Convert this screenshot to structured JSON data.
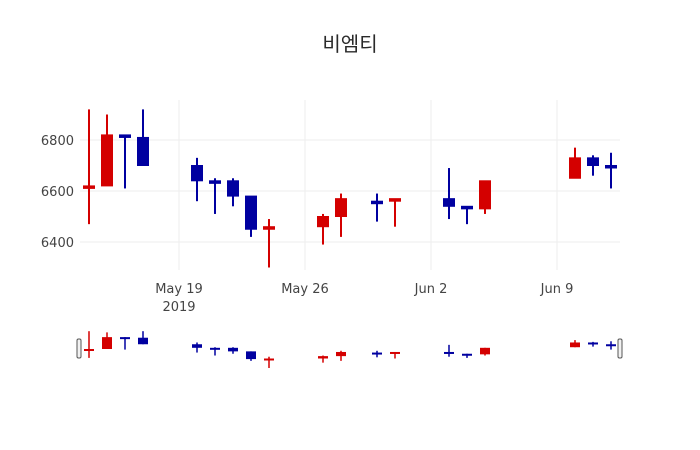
{
  "title": "비엠티",
  "colors": {
    "increasing": "#d40000",
    "decreasing": "#0000a0",
    "grid": "#eeeeee"
  },
  "chart_data": {
    "type": "candlestick",
    "title": "비엠티",
    "xlabel": "",
    "ylabel": "",
    "yticks": [
      6400,
      6600,
      6800
    ],
    "ylim": [
      6270,
      6960
    ],
    "xticks": [
      {
        "date": "2019-05-19",
        "label": "May 19",
        "sublabel": "2019"
      },
      {
        "date": "2019-05-26",
        "label": "May 26"
      },
      {
        "date": "2019-06-02",
        "label": "Jun 2"
      },
      {
        "date": "2019-06-09",
        "label": "Jun 9"
      }
    ],
    "grid": true,
    "rangeslider": true,
    "series": [
      {
        "date": "2019-05-14",
        "open": 6615,
        "high": 6920,
        "low": 6470,
        "close": 6620
      },
      {
        "date": "2019-05-15",
        "open": 6620,
        "high": 6900,
        "low": 6620,
        "close": 6820
      },
      {
        "date": "2019-05-16",
        "open": 6820,
        "high": 6820,
        "low": 6610,
        "close": 6810
      },
      {
        "date": "2019-05-17",
        "open": 6810,
        "high": 6920,
        "low": 6700,
        "close": 6700
      },
      {
        "date": "2019-05-20",
        "open": 6700,
        "high": 6730,
        "low": 6560,
        "close": 6640
      },
      {
        "date": "2019-05-21",
        "open": 6640,
        "high": 6650,
        "low": 6510,
        "close": 6630
      },
      {
        "date": "2019-05-22",
        "open": 6640,
        "high": 6650,
        "low": 6540,
        "close": 6580
      },
      {
        "date": "2019-05-23",
        "open": 6580,
        "high": 6580,
        "low": 6420,
        "close": 6450
      },
      {
        "date": "2019-05-24",
        "open": 6450,
        "high": 6490,
        "low": 6300,
        "close": 6460
      },
      {
        "date": "2019-05-27",
        "open": 6460,
        "high": 6510,
        "low": 6390,
        "close": 6500
      },
      {
        "date": "2019-05-28",
        "open": 6500,
        "high": 6590,
        "low": 6420,
        "close": 6570
      },
      {
        "date": "2019-05-30",
        "open": 6560,
        "high": 6590,
        "low": 6480,
        "close": 6555
      },
      {
        "date": "2019-05-31",
        "open": 6560,
        "high": 6570,
        "low": 6460,
        "close": 6570
      },
      {
        "date": "2019-06-03",
        "open": 6570,
        "high": 6690,
        "low": 6490,
        "close": 6540
      },
      {
        "date": "2019-06-04",
        "open": 6540,
        "high": 6540,
        "low": 6470,
        "close": 6530
      },
      {
        "date": "2019-06-05",
        "open": 6530,
        "high": 6640,
        "low": 6510,
        "close": 6640
      },
      {
        "date": "2019-06-10",
        "open": 6650,
        "high": 6770,
        "low": 6650,
        "close": 6730
      },
      {
        "date": "2019-06-11",
        "open": 6730,
        "high": 6740,
        "low": 6660,
        "close": 6700
      },
      {
        "date": "2019-06-12",
        "open": 6700,
        "high": 6750,
        "low": 6610,
        "close": 6695
      }
    ]
  }
}
